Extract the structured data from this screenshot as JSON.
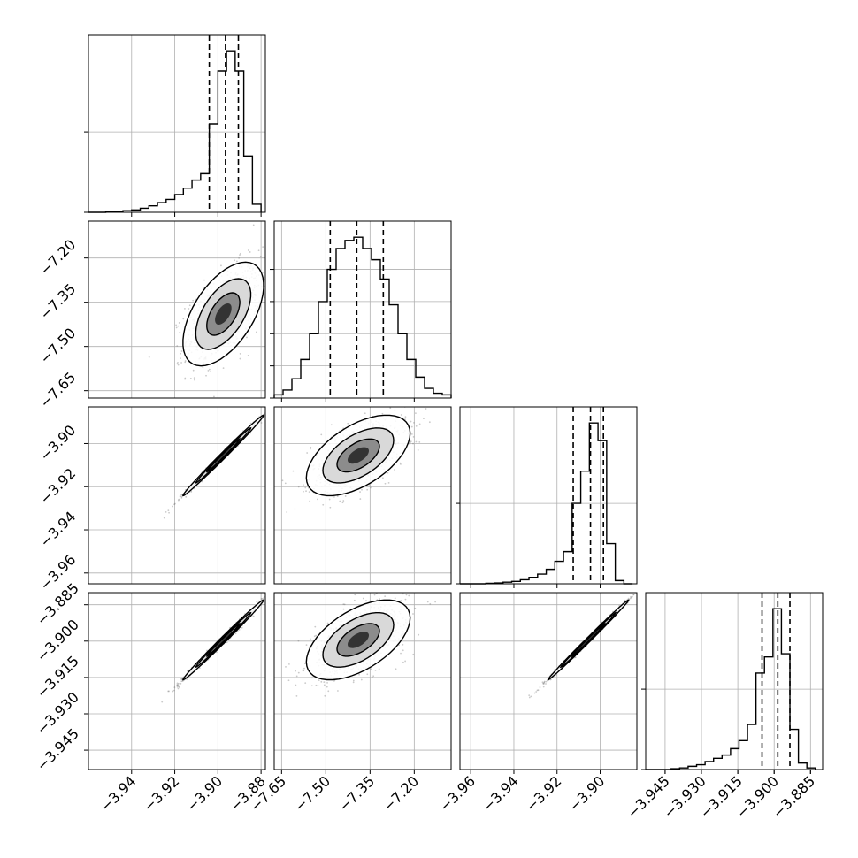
{
  "chart_data": {
    "type": "corner",
    "grid": true,
    "dimensions": [
      {
        "range": [
          -3.96,
          -3.878
        ],
        "ticks": [
          -3.94,
          -3.92,
          -3.9,
          -3.88
        ],
        "tick_labels": [
          "−3.94",
          "−3.92",
          "−3.90",
          "−3.88"
        ],
        "quantiles": [
          -3.904,
          -3.8965,
          -3.8905
        ],
        "hist_bins": [
          -3.96,
          -3.956,
          -3.952,
          -3.948,
          -3.944,
          -3.94,
          -3.936,
          -3.932,
          -3.928,
          -3.924,
          -3.92,
          -3.916,
          -3.912,
          -3.908,
          -3.904,
          -3.9,
          -3.896,
          -3.892,
          -3.888,
          -3.884,
          -3.88
        ],
        "hist_counts": [
          0,
          0,
          0.2,
          0.5,
          1,
          1.5,
          2.5,
          4,
          6,
          8,
          11,
          15,
          20,
          24,
          55,
          88,
          100,
          88,
          35,
          5
        ],
        "hist_ticks": [
          0,
          50
        ]
      },
      {
        "range": [
          -7.675,
          -7.075
        ],
        "ticks": [
          -7.65,
          -7.5,
          -7.35,
          -7.2
        ],
        "tick_labels": [
          "−7.65",
          "−7.50",
          "−7.35",
          "−7.20"
        ],
        "quantiles": [
          -7.485,
          -7.395,
          -7.305
        ],
        "hist_bins": [
          -7.675,
          -7.645,
          -7.615,
          -7.585,
          -7.555,
          -7.525,
          -7.495,
          -7.465,
          -7.435,
          -7.405,
          -7.375,
          -7.345,
          -7.315,
          -7.285,
          -7.255,
          -7.225,
          -7.195,
          -7.165,
          -7.135,
          -7.105,
          -7.075
        ],
        "hist_counts": [
          2,
          5,
          12,
          24,
          40,
          60,
          80,
          93,
          98,
          100,
          93,
          86,
          74,
          58,
          40,
          24,
          13,
          6,
          3,
          2
        ],
        "hist_ticks": [
          0,
          20,
          40,
          60,
          80
        ]
      },
      {
        "range": [
          -3.965,
          -3.883
        ],
        "ticks": [
          -3.96,
          -3.94,
          -3.92,
          -3.9
        ],
        "tick_labels": [
          "−3.96",
          "−3.94",
          "−3.92",
          "−3.90"
        ],
        "quantiles": [
          -3.9125,
          -3.9045,
          -3.8985
        ],
        "hist_bins": [
          -3.965,
          -3.961,
          -3.957,
          -3.953,
          -3.949,
          -3.945,
          -3.941,
          -3.937,
          -3.933,
          -3.929,
          -3.925,
          -3.921,
          -3.917,
          -3.913,
          -3.909,
          -3.905,
          -3.901,
          -3.897,
          -3.893,
          -3.889,
          -3.885
        ],
        "hist_counts": [
          0,
          0,
          0,
          0.3,
          0.5,
          1,
          1.5,
          2.5,
          4,
          6,
          9,
          14,
          20,
          50,
          70,
          100,
          89,
          25,
          2,
          0
        ],
        "hist_ticks": [
          0,
          50
        ]
      },
      {
        "range": [
          -3.953,
          -3.88
        ],
        "ticks": [
          -3.945,
          -3.93,
          -3.915,
          -3.9,
          -3.885
        ],
        "tick_labels": [
          "−3.945",
          "−3.930",
          "−3.915",
          "−3.900",
          "−3.885"
        ],
        "quantiles": [
          -3.905,
          -3.8985,
          -3.8935
        ],
        "hist_bins": [
          -3.953,
          -3.9495,
          -3.946,
          -3.9425,
          -3.939,
          -3.9355,
          -3.932,
          -3.9285,
          -3.925,
          -3.9215,
          -3.918,
          -3.9145,
          -3.911,
          -3.9075,
          -3.904,
          -3.9005,
          -3.897,
          -3.8935,
          -3.89,
          -3.8865,
          -3.883
        ],
        "hist_counts": [
          0,
          0,
          0,
          0.5,
          1,
          2,
          3,
          5,
          7,
          9,
          13,
          18,
          28,
          60,
          70,
          100,
          72,
          25,
          4,
          1
        ],
        "hist_ticks": [
          0,
          50
        ]
      }
    ],
    "pairs": [
      {
        "row": 1,
        "col": 0,
        "mean": [
          -3.8975,
          -7.39
        ],
        "std": [
          0.0085,
          0.08
        ],
        "rho": 0.55
      },
      {
        "row": 2,
        "col": 0,
        "mean": [
          -3.8975,
          -3.9055
        ],
        "std": [
          0.0085,
          0.0085
        ],
        "rho": 0.995
      },
      {
        "row": 2,
        "col": 1,
        "mean": [
          -7.39,
          -3.9055
        ],
        "std": [
          0.08,
          0.0085
        ],
        "rho": 0.55
      },
      {
        "row": 3,
        "col": 0,
        "mean": [
          -3.8975,
          -3.8995
        ],
        "std": [
          0.0085,
          0.0075
        ],
        "rho": 0.995
      },
      {
        "row": 3,
        "col": 1,
        "mean": [
          -7.39,
          -3.8995
        ],
        "std": [
          0.08,
          0.0075
        ],
        "rho": 0.55
      },
      {
        "row": 3,
        "col": 2,
        "mean": [
          -3.9055,
          -3.8995
        ],
        "std": [
          0.0085,
          0.0075
        ],
        "rho": 0.997
      }
    ]
  }
}
